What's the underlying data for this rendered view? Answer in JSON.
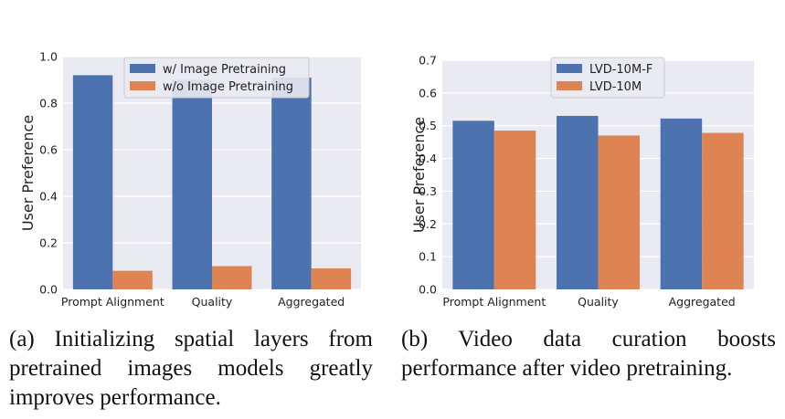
{
  "chart_data": [
    {
      "type": "bar",
      "ylabel": "User Preference",
      "categories": [
        "Prompt Alignment",
        "Quality",
        "Aggregated"
      ],
      "ylim": [
        0,
        1.0
      ],
      "yticks": [
        "0.0",
        "0.2",
        "0.4",
        "0.6",
        "0.8",
        "1.0"
      ],
      "grid": true,
      "legend_position": "top",
      "series": [
        {
          "name": "w/ Image Pretraining",
          "color": "#4c72b0",
          "values": [
            0.92,
            0.9,
            0.91
          ]
        },
        {
          "name": "w/o Image Pretraining",
          "color": "#dd8452",
          "values": [
            0.08,
            0.1,
            0.09
          ]
        }
      ]
    },
    {
      "type": "bar",
      "ylabel": "User Preference",
      "categories": [
        "Prompt Alignment",
        "Quality",
        "Aggregated"
      ],
      "ylim": [
        0,
        0.7
      ],
      "yticks": [
        "0.0",
        "0.1",
        "0.2",
        "0.3",
        "0.4",
        "0.5",
        "0.6",
        "0.7"
      ],
      "grid": true,
      "legend_position": "top",
      "series": [
        {
          "name": "LVD-10M-F",
          "color": "#4c72b0",
          "values": [
            0.515,
            0.53,
            0.522
          ]
        },
        {
          "name": "LVD-10M",
          "color": "#dd8452",
          "values": [
            0.485,
            0.47,
            0.478
          ]
        }
      ]
    }
  ],
  "captions": {
    "a": "(a) Initializing spatial layers from pretrained images models greatly improves performance.",
    "b": "(b) Video data curation boosts performance after video pretraining."
  }
}
